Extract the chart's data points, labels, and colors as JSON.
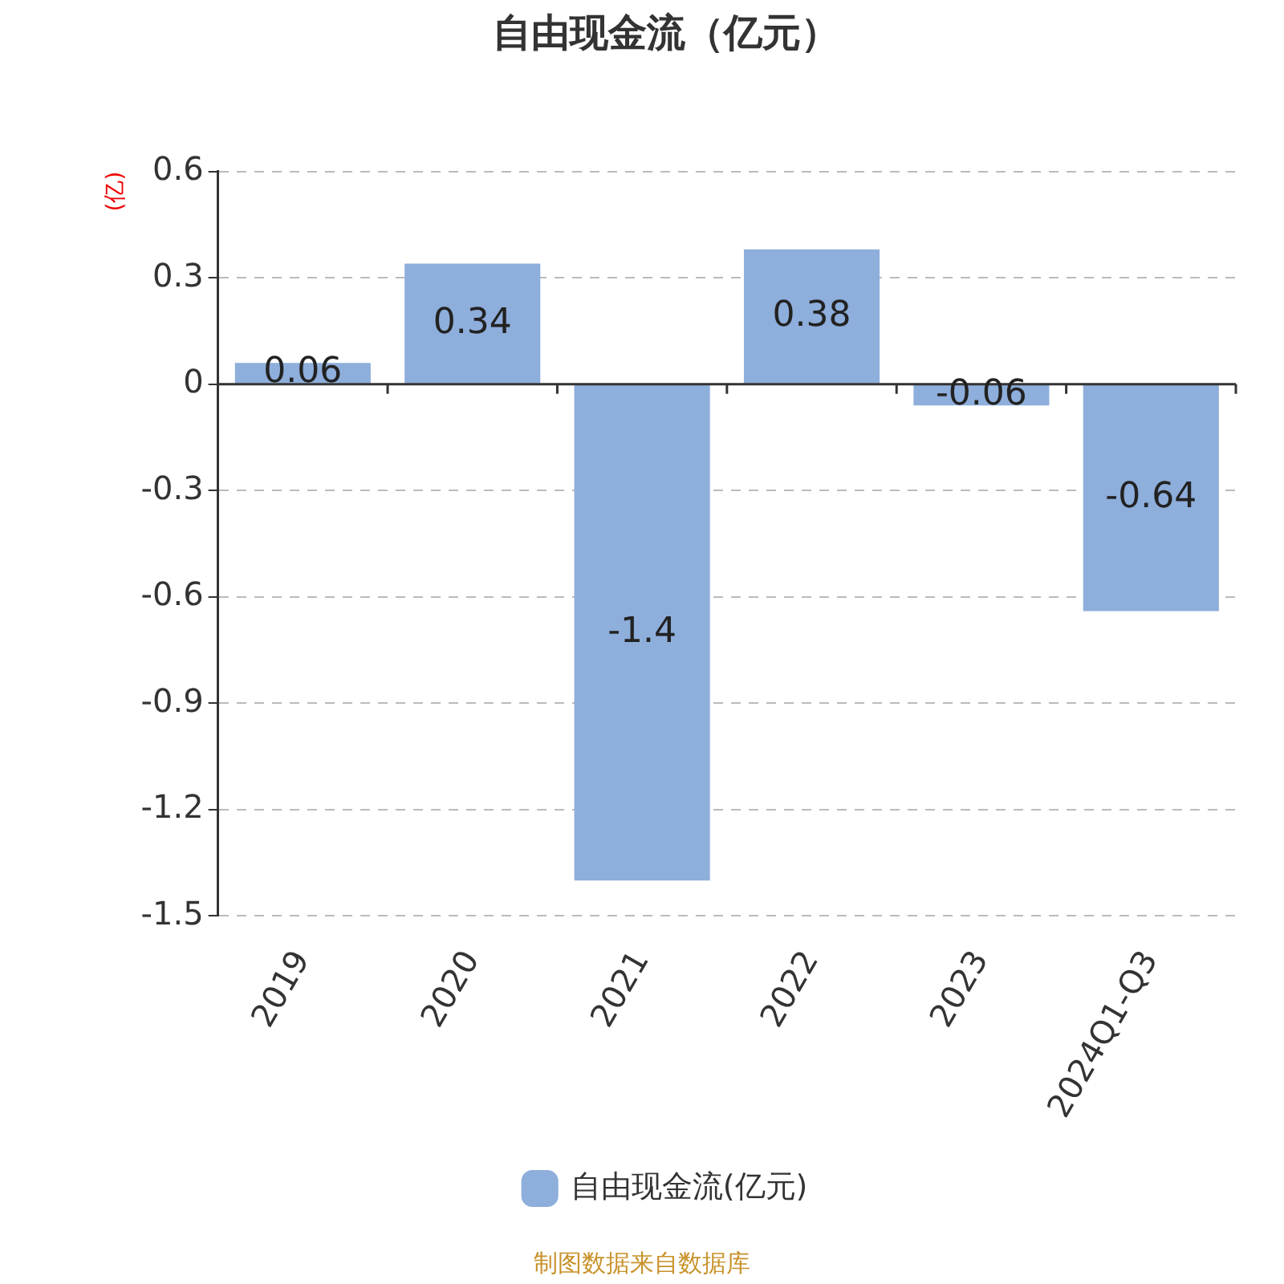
{
  "chart_data": {
    "type": "bar",
    "title": "自由现金流（亿元）",
    "ylabel": "(亿)",
    "categories": [
      "2019",
      "2020",
      "2021",
      "2022",
      "2023",
      "2024Q1-Q3"
    ],
    "series": [
      {
        "name": "自由现金流(亿元)",
        "color": "#8eaedb",
        "values": [
          0.06,
          0.34,
          -1.4,
          0.38,
          -0.06,
          -0.64
        ]
      }
    ],
    "ylim": [
      -1.5,
      0.6
    ],
    "yticks": [
      0.6,
      0.3,
      0,
      -0.3,
      -0.6,
      -0.9,
      -1.2,
      -1.5
    ],
    "grid": "y",
    "legend": "bottom",
    "data_labels": true,
    "annotations": [
      "制图数据来自数据库"
    ]
  }
}
